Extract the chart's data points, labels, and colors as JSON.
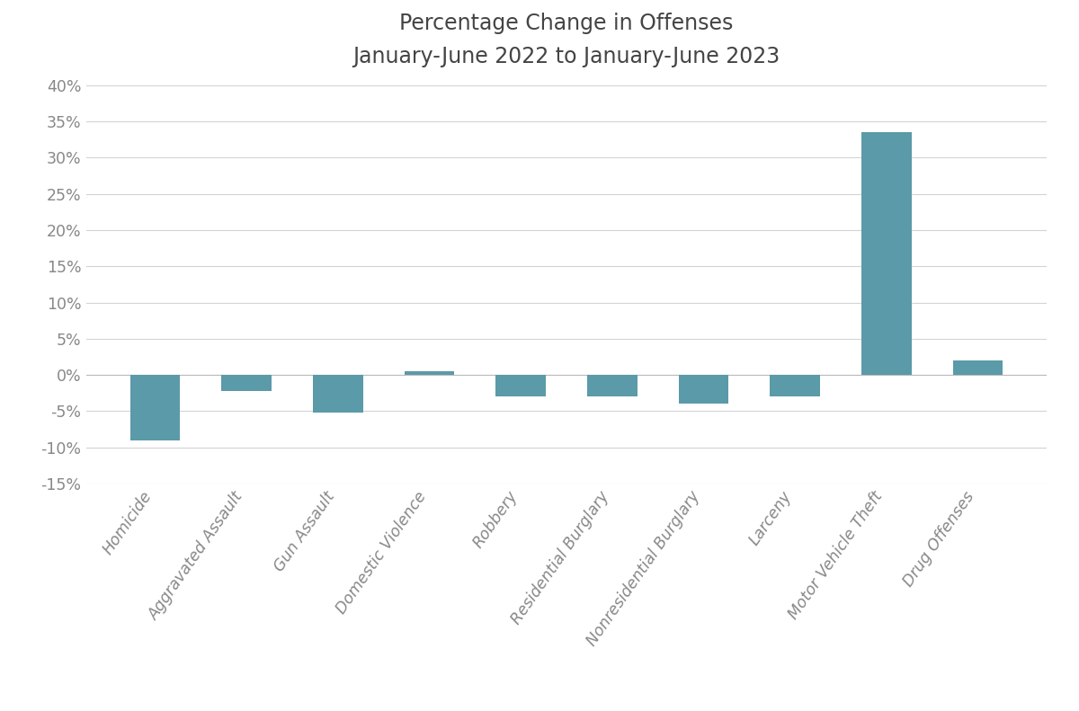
{
  "title": "Percentage Change in Offenses",
  "subtitle": "January-June 2022 to January-June 2023",
  "categories": [
    "Homicide",
    "Aggravated Assault",
    "Gun Assault",
    "Domestic Violence",
    "Robbery",
    "Residential Burglary",
    "Nonresidential Burglary",
    "Larceny",
    "Motor Vehicle Theft",
    "Drug Offenses"
  ],
  "values": [
    -9.0,
    -2.2,
    -5.2,
    0.5,
    -3.0,
    -3.0,
    -4.0,
    -3.0,
    33.5,
    2.0
  ],
  "bar_color": "#5b9aa8",
  "ylim": [
    -15,
    40
  ],
  "yticks": [
    -15,
    -10,
    -5,
    0,
    5,
    10,
    15,
    20,
    25,
    30,
    35,
    40
  ],
  "background_color": "#ffffff",
  "grid_color": "#d3d3d3",
  "title_fontsize": 17,
  "subtitle_fontsize": 13,
  "tick_fontsize": 12.5,
  "xlabel_rotation": 55,
  "title_color": "#444444",
  "tick_color": "#888888"
}
